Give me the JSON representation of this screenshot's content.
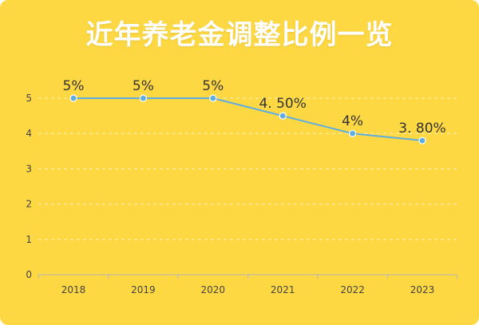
{
  "colors": {
    "background": "#FDD843",
    "title": "#FFFFFF",
    "line": "#5DADE2",
    "grid": "#FFF1B8",
    "axis": "#B8B8B8"
  },
  "chart_data": {
    "type": "line",
    "title": "近年养老金调整比例一览",
    "xlabel": "",
    "ylabel": "",
    "categories": [
      "2018",
      "2019",
      "2020",
      "2021",
      "2022",
      "2023"
    ],
    "values": [
      5,
      5,
      5,
      4.5,
      4,
      3.8
    ],
    "data_labels": [
      "5%",
      "5%",
      "5%",
      "4. 50%",
      "4%",
      "3. 80%"
    ],
    "ylim": [
      0,
      5
    ],
    "yticks": [
      0,
      1,
      2,
      3,
      4,
      5
    ],
    "grid": true,
    "grid_style": "dashed",
    "legend": "none"
  }
}
